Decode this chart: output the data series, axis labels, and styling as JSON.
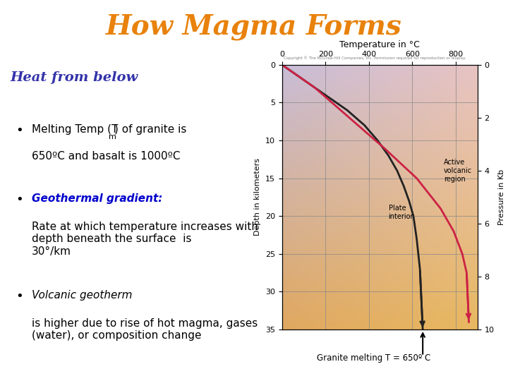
{
  "title": "How Magma Forms",
  "title_color": "#E8820C",
  "subtitle": "Heat from below",
  "subtitle_color": "#3333AA",
  "temp_min": 0,
  "temp_max": 900,
  "depth_min": 0,
  "depth_max": 35,
  "pressure_min": 0,
  "pressure_max": 10,
  "temp_ticks": [
    0,
    200,
    400,
    600,
    800
  ],
  "depth_ticks": [
    0,
    5,
    10,
    15,
    20,
    25,
    30,
    35
  ],
  "pressure_ticks": [
    0,
    2,
    4,
    6,
    8,
    10
  ],
  "xlabel": "Temperature in °C",
  "ylabel_left": "Depth in kilometers",
  "ylabel_right": "Pressure in Kb",
  "copyright_text": "Copyright © The McGraw-Hill Companies, Inc. Permission required for reproduction or display.",
  "plate_interior_T": [
    0,
    100,
    200,
    300,
    380,
    440,
    490,
    530,
    560,
    585,
    605,
    620,
    635,
    648
  ],
  "plate_interior_D": [
    0,
    2,
    4,
    6,
    8,
    10,
    12,
    14,
    16,
    18,
    20,
    23,
    27,
    35
  ],
  "volcanic_T": [
    0,
    150,
    310,
    470,
    620,
    730,
    790,
    830,
    850,
    860
  ],
  "volcanic_D": [
    0,
    3,
    7,
    11,
    15,
    19,
    22,
    25,
    27.5,
    34
  ],
  "plate_interior_color": "#222222",
  "volcanic_color": "#CC2244",
  "annotation_granite": "Granite melting T = 650º C",
  "granite_T": 648,
  "granite_D": 35,
  "grid_color": "#888888"
}
